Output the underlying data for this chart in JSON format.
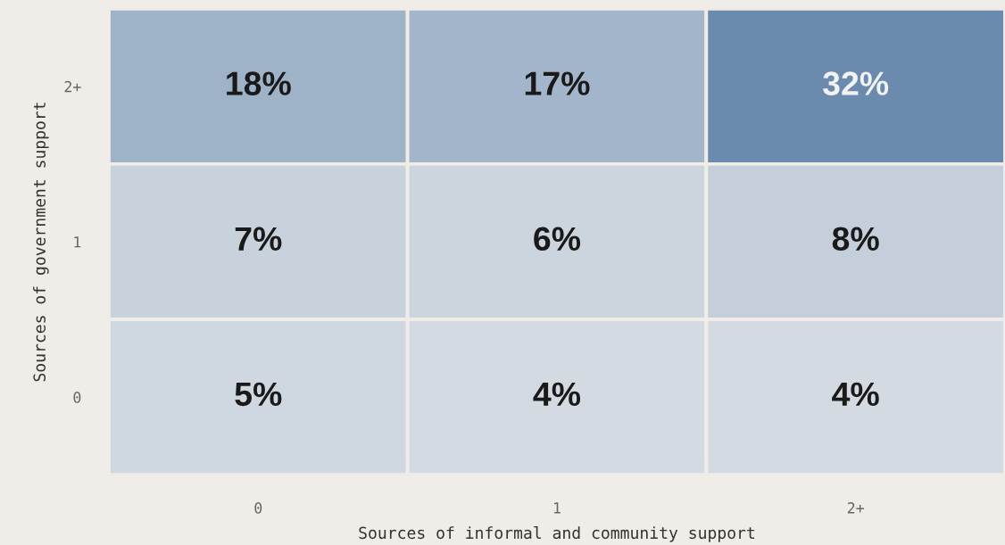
{
  "chart_data": {
    "type": "heatmap",
    "xlabel": "Sources of informal and community support",
    "ylabel": "Sources of government support",
    "categories": [
      "0",
      "1",
      "2+"
    ],
    "y_categories": [
      "2+",
      "1",
      "0"
    ],
    "cells": [
      [
        18,
        17,
        32
      ],
      [
        7,
        6,
        8
      ],
      [
        5,
        4,
        4
      ]
    ],
    "cell_labels": [
      [
        "18%",
        "17%",
        "32%"
      ],
      [
        "7%",
        "6%",
        "8%"
      ],
      [
        "5%",
        "4%",
        "4%"
      ]
    ],
    "colors": [
      "#d3dae2",
      "#6a8bae"
    ]
  }
}
